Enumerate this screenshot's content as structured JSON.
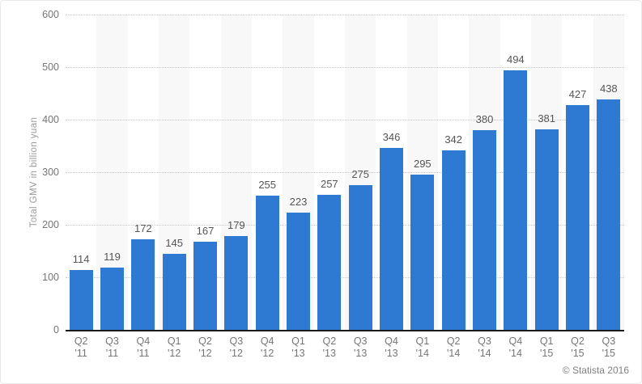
{
  "chart_data": {
    "type": "bar",
    "title": "",
    "xlabel": "",
    "ylabel": "Total GMV in billion yuan",
    "ylim": [
      0,
      600
    ],
    "yticks": [
      0,
      100,
      200,
      300,
      400,
      500,
      600
    ],
    "categories": [
      "Q2 '11",
      "Q3 '11",
      "Q4 '11",
      "Q1 '12",
      "Q2 '12",
      "Q3 '12",
      "Q4 '12",
      "Q1 '13",
      "Q2 '13",
      "Q3 '13",
      "Q4 '13",
      "Q1 '14",
      "Q2 '14",
      "Q3 '14",
      "Q4 '14",
      "Q1 '15",
      "Q2 '15",
      "Q3 '15"
    ],
    "values": [
      114,
      119,
      172,
      145,
      167,
      179,
      255,
      223,
      257,
      275,
      346,
      295,
      342,
      380,
      494,
      381,
      427,
      438
    ],
    "grid": "horizontal-dotted",
    "legend": "none",
    "plot_bands": "alternating-vertical",
    "colors": {
      "bar": "#2e7ad3",
      "band": "#f8f8f8",
      "gridline": "#c9c9c9",
      "axis_line": "#1a1a1a",
      "tick_text": "#757575",
      "value_text": "#555555",
      "axis_title_text": "#999999"
    }
  },
  "footer": {
    "attribution": "© Statista 2016"
  }
}
